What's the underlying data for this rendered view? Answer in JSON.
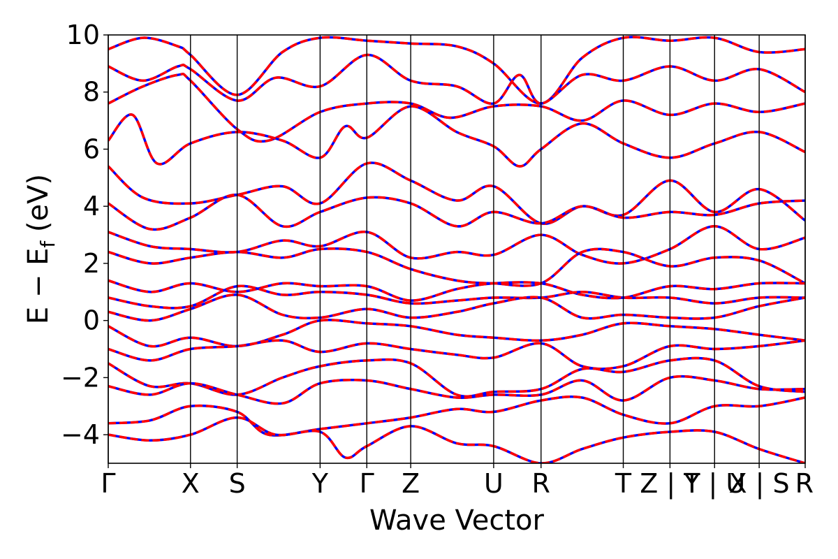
{
  "chart_data": {
    "type": "line",
    "title": "",
    "xlabel": "Wave Vector",
    "ylabel": {
      "base": "E  −  E",
      "subscript": "f",
      "suffix": " (eV)"
    },
    "ylim": [
      -5,
      10
    ],
    "yticks": [
      -4,
      -2,
      0,
      2,
      4,
      6,
      8,
      10
    ],
    "ytick_labels": [
      "−4",
      "−2",
      "0",
      "2",
      "4",
      "6",
      "8",
      "10"
    ],
    "xlim": [
      0,
      10
    ],
    "kpoints": [
      {
        "label": "Γ",
        "x": 0.0
      },
      {
        "label": "X",
        "x": 1.18
      },
      {
        "label": "S",
        "x": 1.85
      },
      {
        "label": "Y",
        "x": 3.04
      },
      {
        "label": "Γ",
        "x": 3.71
      },
      {
        "label": "Z",
        "x": 4.34
      },
      {
        "label": "U",
        "x": 5.53
      },
      {
        "label": "R",
        "x": 6.21
      },
      {
        "label": "T",
        "x": 7.39
      },
      {
        "label": "Z | Y",
        "x": 8.06
      },
      {
        "label": "T | U",
        "x": 8.7
      },
      {
        "label": "X | S",
        "x": 9.34
      },
      {
        "label": "R",
        "x": 10.0
      }
    ],
    "grid": false,
    "series_style": [
      {
        "name": "",
        "color": "#0000ff",
        "dash": "solid"
      },
      {
        "name": "",
        "color": "#ff0000",
        "dash": "dashed"
      }
    ],
    "bands": [
      [
        [
          0,
          9.5
        ],
        [
          0.5,
          9.9
        ],
        [
          1.0,
          9.6
        ],
        [
          1.18,
          9.3
        ],
        [
          1.85,
          7.9
        ],
        [
          2.5,
          9.4
        ],
        [
          3.04,
          9.9
        ],
        [
          3.71,
          9.8
        ],
        [
          4.34,
          9.7
        ],
        [
          5.0,
          9.6
        ],
        [
          5.53,
          9.0
        ],
        [
          6.21,
          7.6
        ],
        [
          6.8,
          9.2
        ],
        [
          7.39,
          9.9
        ],
        [
          8.06,
          9.8
        ],
        [
          8.7,
          9.9
        ],
        [
          9.34,
          9.4
        ],
        [
          10,
          9.5
        ]
      ],
      [
        [
          0,
          8.9
        ],
        [
          0.5,
          8.4
        ],
        [
          1.0,
          8.9
        ],
        [
          1.18,
          8.8
        ],
        [
          1.85,
          7.7
        ],
        [
          2.4,
          8.5
        ],
        [
          3.04,
          8.2
        ],
        [
          3.71,
          9.3
        ],
        [
          4.34,
          8.4
        ],
        [
          5.0,
          8.2
        ],
        [
          5.53,
          7.6
        ],
        [
          5.9,
          8.6
        ],
        [
          6.21,
          7.6
        ],
        [
          6.8,
          8.6
        ],
        [
          7.39,
          8.4
        ],
        [
          8.06,
          8.9
        ],
        [
          8.7,
          8.4
        ],
        [
          9.34,
          8.8
        ],
        [
          10,
          8.0
        ]
      ],
      [
        [
          0,
          7.6
        ],
        [
          0.5,
          8.2
        ],
        [
          1.0,
          8.6
        ],
        [
          1.18,
          8.4
        ],
        [
          1.85,
          6.7
        ],
        [
          2.3,
          6.3
        ],
        [
          3.04,
          7.3
        ],
        [
          3.71,
          7.6
        ],
        [
          4.34,
          7.6
        ],
        [
          4.9,
          7.1
        ],
        [
          5.53,
          7.5
        ],
        [
          6.21,
          7.5
        ],
        [
          6.8,
          7.0
        ],
        [
          7.39,
          7.7
        ],
        [
          8.06,
          7.2
        ],
        [
          8.7,
          7.6
        ],
        [
          9.34,
          7.3
        ],
        [
          10,
          7.6
        ]
      ],
      [
        [
          0,
          6.3
        ],
        [
          0.35,
          7.2
        ],
        [
          0.7,
          5.5
        ],
        [
          1.18,
          6.2
        ],
        [
          1.85,
          6.6
        ],
        [
          2.5,
          6.3
        ],
        [
          3.04,
          5.7
        ],
        [
          3.4,
          6.8
        ],
        [
          3.71,
          6.4
        ],
        [
          4.34,
          7.5
        ],
        [
          5.0,
          6.6
        ],
        [
          5.53,
          6.1
        ],
        [
          5.9,
          5.4
        ],
        [
          6.21,
          6.0
        ],
        [
          6.8,
          6.9
        ],
        [
          7.39,
          6.2
        ],
        [
          8.06,
          5.7
        ],
        [
          8.7,
          6.2
        ],
        [
          9.34,
          6.6
        ],
        [
          10,
          5.9
        ]
      ],
      [
        [
          0,
          5.4
        ],
        [
          0.5,
          4.3
        ],
        [
          1.18,
          4.1
        ],
        [
          1.85,
          4.4
        ],
        [
          2.5,
          4.7
        ],
        [
          3.04,
          4.1
        ],
        [
          3.71,
          5.5
        ],
        [
          4.34,
          4.9
        ],
        [
          5.0,
          4.2
        ],
        [
          5.53,
          4.7
        ],
        [
          6.21,
          3.4
        ],
        [
          6.8,
          4.0
        ],
        [
          7.39,
          3.7
        ],
        [
          8.06,
          4.9
        ],
        [
          8.7,
          3.8
        ],
        [
          9.34,
          4.6
        ],
        [
          10,
          3.5
        ]
      ],
      [
        [
          0,
          4.1
        ],
        [
          0.6,
          3.2
        ],
        [
          1.18,
          3.6
        ],
        [
          1.85,
          4.4
        ],
        [
          2.5,
          3.3
        ],
        [
          3.04,
          3.8
        ],
        [
          3.71,
          4.3
        ],
        [
          4.34,
          4.1
        ],
        [
          5.0,
          3.3
        ],
        [
          5.53,
          3.8
        ],
        [
          6.21,
          3.4
        ],
        [
          6.8,
          4.0
        ],
        [
          7.39,
          3.6
        ],
        [
          8.06,
          3.8
        ],
        [
          8.7,
          3.7
        ],
        [
          9.34,
          4.1
        ],
        [
          10,
          4.2
        ]
      ],
      [
        [
          0,
          3.1
        ],
        [
          0.6,
          2.6
        ],
        [
          1.18,
          2.5
        ],
        [
          1.85,
          2.4
        ],
        [
          2.5,
          2.8
        ],
        [
          3.04,
          2.6
        ],
        [
          3.71,
          3.1
        ],
        [
          4.34,
          2.2
        ],
        [
          5.0,
          2.4
        ],
        [
          5.53,
          2.3
        ],
        [
          6.21,
          3.0
        ],
        [
          6.8,
          2.3
        ],
        [
          7.39,
          2.0
        ],
        [
          8.06,
          2.5
        ],
        [
          8.7,
          3.3
        ],
        [
          9.34,
          2.5
        ],
        [
          10,
          2.9
        ]
      ],
      [
        [
          0,
          2.4
        ],
        [
          0.6,
          2.0
        ],
        [
          1.18,
          2.2
        ],
        [
          1.85,
          2.4
        ],
        [
          2.5,
          2.2
        ],
        [
          3.04,
          2.5
        ],
        [
          3.71,
          2.4
        ],
        [
          4.34,
          1.8
        ],
        [
          5.0,
          1.4
        ],
        [
          5.53,
          1.3
        ],
        [
          6.21,
          1.3
        ],
        [
          6.8,
          2.4
        ],
        [
          7.39,
          2.4
        ],
        [
          8.06,
          1.9
        ],
        [
          8.7,
          2.2
        ],
        [
          9.34,
          2.1
        ],
        [
          10,
          1.3
        ]
      ],
      [
        [
          0,
          1.4
        ],
        [
          0.6,
          1.0
        ],
        [
          1.18,
          1.3
        ],
        [
          1.85,
          1.0
        ],
        [
          2.5,
          1.3
        ],
        [
          3.04,
          1.2
        ],
        [
          3.71,
          1.2
        ],
        [
          4.34,
          0.7
        ],
        [
          5.0,
          1.1
        ],
        [
          5.53,
          1.3
        ],
        [
          6.21,
          1.3
        ],
        [
          6.8,
          0.9
        ],
        [
          7.39,
          0.8
        ],
        [
          8.06,
          1.2
        ],
        [
          8.7,
          1.1
        ],
        [
          9.34,
          1.3
        ],
        [
          10,
          1.3
        ]
      ],
      [
        [
          0,
          0.8
        ],
        [
          0.6,
          0.5
        ],
        [
          1.18,
          0.5
        ],
        [
          1.85,
          1.2
        ],
        [
          2.5,
          0.9
        ],
        [
          3.04,
          1.0
        ],
        [
          3.71,
          0.9
        ],
        [
          4.34,
          0.6
        ],
        [
          5.0,
          0.7
        ],
        [
          5.53,
          0.8
        ],
        [
          6.21,
          0.8
        ],
        [
          6.8,
          1.0
        ],
        [
          7.39,
          0.8
        ],
        [
          8.06,
          0.8
        ],
        [
          8.7,
          0.6
        ],
        [
          9.34,
          0.8
        ],
        [
          10,
          0.8
        ]
      ],
      [
        [
          0,
          0.3
        ],
        [
          0.6,
          0.0
        ],
        [
          1.18,
          0.4
        ],
        [
          1.85,
          0.9
        ],
        [
          2.5,
          0.2
        ],
        [
          3.04,
          0.1
        ],
        [
          3.71,
          0.4
        ],
        [
          4.34,
          0.1
        ],
        [
          5.0,
          0.3
        ],
        [
          5.53,
          0.6
        ],
        [
          6.21,
          0.8
        ],
        [
          6.8,
          0.1
        ],
        [
          7.39,
          0.2
        ],
        [
          8.06,
          0.1
        ],
        [
          8.7,
          0.1
        ],
        [
          9.34,
          0.5
        ],
        [
          10,
          0.8
        ]
      ],
      [
        [
          0,
          -0.2
        ],
        [
          0.6,
          -0.9
        ],
        [
          1.18,
          -0.6
        ],
        [
          1.85,
          -0.9
        ],
        [
          2.5,
          -0.5
        ],
        [
          3.04,
          0.0
        ],
        [
          3.71,
          -0.1
        ],
        [
          4.34,
          -0.2
        ],
        [
          5.0,
          -0.5
        ],
        [
          5.53,
          -0.6
        ],
        [
          6.21,
          -0.7
        ],
        [
          6.8,
          -0.5
        ],
        [
          7.39,
          -0.1
        ],
        [
          8.06,
          -0.2
        ],
        [
          8.7,
          -0.3
        ],
        [
          9.34,
          -0.5
        ],
        [
          10,
          -0.7
        ]
      ],
      [
        [
          0,
          -1.0
        ],
        [
          0.6,
          -1.4
        ],
        [
          1.18,
          -1.0
        ],
        [
          1.85,
          -0.9
        ],
        [
          2.5,
          -0.7
        ],
        [
          3.04,
          -1.1
        ],
        [
          3.71,
          -0.8
        ],
        [
          4.34,
          -1.0
        ],
        [
          5.0,
          -1.2
        ],
        [
          5.53,
          -1.3
        ],
        [
          6.21,
          -0.8
        ],
        [
          6.8,
          -1.6
        ],
        [
          7.39,
          -1.6
        ],
        [
          8.06,
          -0.9
        ],
        [
          8.7,
          -1.0
        ],
        [
          9.34,
          -0.9
        ],
        [
          10,
          -0.7
        ]
      ],
      [
        [
          0,
          -1.5
        ],
        [
          0.6,
          -2.3
        ],
        [
          1.18,
          -2.2
        ],
        [
          1.85,
          -2.6
        ],
        [
          2.5,
          -2.0
        ],
        [
          3.04,
          -1.6
        ],
        [
          3.71,
          -1.4
        ],
        [
          4.34,
          -1.5
        ],
        [
          5.0,
          -2.6
        ],
        [
          5.53,
          -2.5
        ],
        [
          6.21,
          -2.4
        ],
        [
          6.8,
          -1.7
        ],
        [
          7.39,
          -1.8
        ],
        [
          8.06,
          -1.4
        ],
        [
          8.7,
          -1.4
        ],
        [
          9.34,
          -2.3
        ],
        [
          10,
          -2.5
        ]
      ],
      [
        [
          0,
          -2.3
        ],
        [
          0.6,
          -2.6
        ],
        [
          1.18,
          -2.2
        ],
        [
          1.85,
          -2.6
        ],
        [
          2.5,
          -2.9
        ],
        [
          3.04,
          -2.2
        ],
        [
          3.71,
          -2.1
        ],
        [
          4.34,
          -2.4
        ],
        [
          5.0,
          -2.7
        ],
        [
          5.53,
          -2.6
        ],
        [
          6.21,
          -2.6
        ],
        [
          6.8,
          -2.1
        ],
        [
          7.39,
          -2.8
        ],
        [
          8.06,
          -2.0
        ],
        [
          8.7,
          -2.1
        ],
        [
          9.34,
          -2.4
        ],
        [
          10,
          -2.4
        ]
      ],
      [
        [
          0,
          -3.6
        ],
        [
          0.6,
          -3.5
        ],
        [
          1.18,
          -3.0
        ],
        [
          1.85,
          -3.2
        ],
        [
          2.3,
          -4.0
        ],
        [
          3.04,
          -3.8
        ],
        [
          3.71,
          -3.6
        ],
        [
          4.34,
          -3.4
        ],
        [
          5.0,
          -3.1
        ],
        [
          5.53,
          -3.2
        ],
        [
          6.21,
          -2.8
        ],
        [
          6.8,
          -2.7
        ],
        [
          7.39,
          -3.3
        ],
        [
          8.06,
          -3.6
        ],
        [
          8.7,
          -3.0
        ],
        [
          9.34,
          -3.0
        ],
        [
          10,
          -2.7
        ]
      ],
      [
        [
          0,
          -4.0
        ],
        [
          0.6,
          -4.2
        ],
        [
          1.18,
          -4.0
        ],
        [
          1.85,
          -3.4
        ],
        [
          2.4,
          -4.0
        ],
        [
          3.04,
          -3.9
        ],
        [
          3.4,
          -4.8
        ],
        [
          3.71,
          -4.4
        ],
        [
          4.34,
          -3.7
        ],
        [
          5.0,
          -4.3
        ],
        [
          5.53,
          -4.4
        ],
        [
          6.21,
          -5.0
        ],
        [
          6.8,
          -4.5
        ],
        [
          7.39,
          -4.1
        ],
        [
          8.06,
          -3.9
        ],
        [
          8.7,
          -3.9
        ],
        [
          9.34,
          -4.5
        ],
        [
          10,
          -5.0
        ]
      ]
    ]
  }
}
